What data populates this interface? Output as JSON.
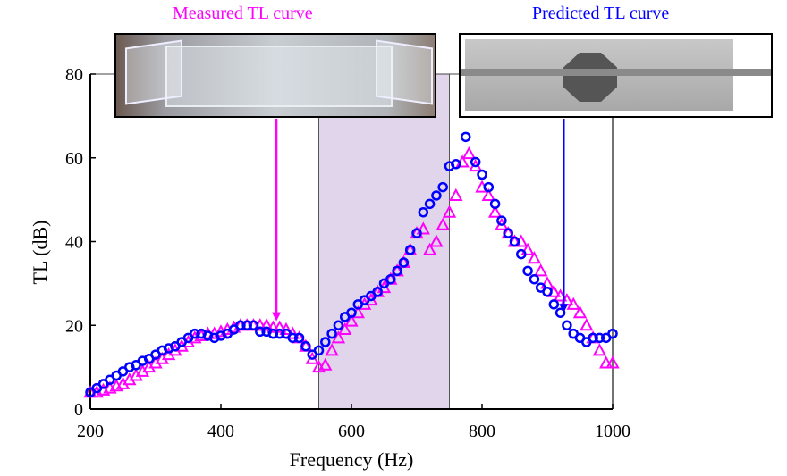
{
  "chart_data": {
    "type": "scatter",
    "xlabel": "Frequency (Hz)",
    "ylabel": "TL (dB)",
    "xlim": [
      200,
      1000
    ],
    "ylim": [
      0,
      80
    ],
    "xticks": [
      200,
      400,
      600,
      800,
      1000
    ],
    "yticks": [
      0,
      20,
      40,
      60,
      80
    ],
    "grid": false,
    "shaded_band": [
      550,
      750
    ],
    "shaded_color": "#e0d5ea",
    "series": [
      {
        "name": "Measured TL curve",
        "marker": "triangle",
        "color": "#ff00ff",
        "x": [
          200,
          210,
          220,
          230,
          240,
          250,
          260,
          270,
          280,
          290,
          300,
          310,
          320,
          330,
          340,
          350,
          360,
          370,
          380,
          390,
          400,
          410,
          420,
          430,
          440,
          450,
          460,
          470,
          480,
          490,
          500,
          510,
          520,
          530,
          540,
          550,
          560,
          570,
          580,
          590,
          600,
          610,
          620,
          630,
          640,
          650,
          660,
          670,
          680,
          690,
          700,
          710,
          720,
          730,
          740,
          750,
          760,
          770,
          780,
          790,
          800,
          810,
          820,
          830,
          840,
          850,
          860,
          870,
          880,
          890,
          900,
          910,
          920,
          930,
          940,
          950,
          960,
          970,
          980,
          990,
          1000
        ],
        "y": [
          4,
          4,
          4.5,
          5,
          5.5,
          6,
          7,
          8,
          9,
          10,
          11,
          12,
          13,
          14,
          15,
          16,
          17,
          17.5,
          18,
          18,
          18.5,
          19,
          19.5,
          20,
          20,
          20,
          20,
          20,
          19.5,
          19.5,
          19,
          18,
          17,
          15,
          12,
          10,
          10.5,
          14,
          17,
          19,
          21,
          23,
          25,
          26,
          28,
          29,
          31,
          33,
          35,
          38,
          42,
          43,
          38,
          40,
          44,
          47,
          51,
          59,
          61,
          58,
          53,
          51,
          47,
          44,
          42,
          40,
          40,
          38,
          36,
          33,
          30,
          28,
          27,
          26,
          25,
          23,
          20,
          17,
          14,
          11,
          11
        ]
      },
      {
        "name": "Predicted TL curve",
        "marker": "circle",
        "color": "#0000ff",
        "x": [
          200,
          210,
          220,
          230,
          240,
          250,
          260,
          270,
          280,
          290,
          300,
          310,
          320,
          330,
          340,
          350,
          360,
          370,
          380,
          390,
          400,
          410,
          420,
          430,
          440,
          450,
          460,
          470,
          480,
          490,
          500,
          510,
          520,
          530,
          540,
          550,
          560,
          570,
          580,
          590,
          600,
          610,
          620,
          630,
          640,
          650,
          660,
          670,
          680,
          690,
          700,
          710,
          720,
          730,
          740,
          750,
          760,
          775,
          790,
          800,
          810,
          820,
          830,
          840,
          850,
          860,
          870,
          880,
          890,
          900,
          910,
          920,
          930,
          940,
          950,
          960,
          970,
          980,
          990,
          1000
        ],
        "y": [
          4,
          5,
          6,
          7,
          8,
          9,
          10,
          10.5,
          11.5,
          12,
          13,
          14,
          14.5,
          15,
          16,
          17,
          18,
          18,
          17.5,
          17,
          17.5,
          18,
          19,
          20,
          20,
          20,
          18.5,
          18.5,
          18,
          18,
          18,
          17,
          17,
          15,
          13,
          14,
          16,
          18,
          20,
          22,
          23,
          25,
          26,
          27,
          28,
          30,
          31,
          33,
          35,
          38,
          42,
          47,
          49,
          51,
          53,
          58,
          58.5,
          65,
          59,
          56,
          53,
          49,
          45,
          42,
          40,
          37,
          33,
          31,
          29,
          28,
          25,
          23,
          20,
          18,
          17,
          16,
          17,
          17,
          17,
          18
        ]
      }
    ],
    "annotations": [
      {
        "text": "Measured TL curve",
        "color": "#ff00ff",
        "arrow_x": 485,
        "arrow_to_y": 21
      },
      {
        "text": "Predicted TL curve",
        "color": "#0000ff",
        "arrow_x": 925,
        "arrow_to_y": 23
      }
    ]
  }
}
